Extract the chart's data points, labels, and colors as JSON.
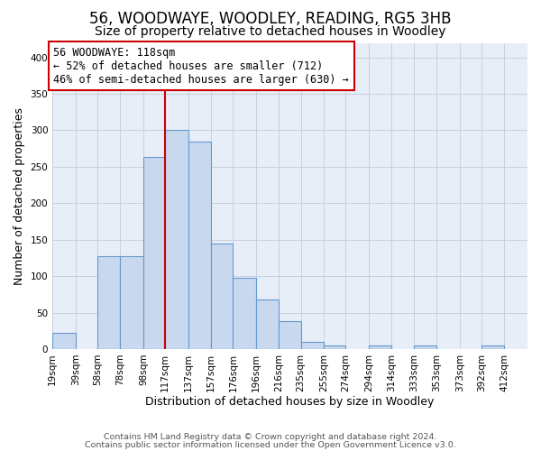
{
  "title": "56, WOODWAYE, WOODLEY, READING, RG5 3HB",
  "subtitle": "Size of property relative to detached houses in Woodley",
  "xlabel": "Distribution of detached houses by size in Woodley",
  "ylabel": "Number of detached properties",
  "bin_labels": [
    "19sqm",
    "39sqm",
    "58sqm",
    "78sqm",
    "98sqm",
    "117sqm",
    "137sqm",
    "157sqm",
    "176sqm",
    "196sqm",
    "216sqm",
    "235sqm",
    "255sqm",
    "274sqm",
    "294sqm",
    "314sqm",
    "333sqm",
    "353sqm",
    "373sqm",
    "392sqm",
    "412sqm"
  ],
  "bin_edges": [
    19,
    39,
    58,
    78,
    98,
    117,
    137,
    157,
    176,
    196,
    216,
    235,
    255,
    274,
    294,
    314,
    333,
    353,
    373,
    392,
    412
  ],
  "bar_heights": [
    22,
    0,
    128,
    128,
    264,
    300,
    285,
    145,
    98,
    68,
    38,
    10,
    5,
    0,
    5,
    0,
    5,
    0,
    0,
    5,
    0
  ],
  "bar_color": "#c8d8ef",
  "bar_edge_color": "#6699cc",
  "property_line_x": 117,
  "property_line_color": "#cc0000",
  "annotation_text": "56 WOODWAYE: 118sqm\n← 52% of detached houses are smaller (712)\n46% of semi-detached houses are larger (630) →",
  "annotation_box_color": "#ffffff",
  "annotation_box_edge_color": "#cc0000",
  "ylim": [
    0,
    420
  ],
  "yticks": [
    0,
    50,
    100,
    150,
    200,
    250,
    300,
    350,
    400
  ],
  "footer_line1": "Contains HM Land Registry data © Crown copyright and database right 2024.",
  "footer_line2": "Contains public sector information licensed under the Open Government Licence v3.0.",
  "background_color": "#ffffff",
  "axes_bg_color": "#e8eef8",
  "grid_color": "#c8d0de",
  "title_fontsize": 12,
  "subtitle_fontsize": 10,
  "axis_label_fontsize": 9,
  "tick_fontsize": 7.5,
  "annotation_fontsize": 8.5,
  "footer_fontsize": 6.8
}
